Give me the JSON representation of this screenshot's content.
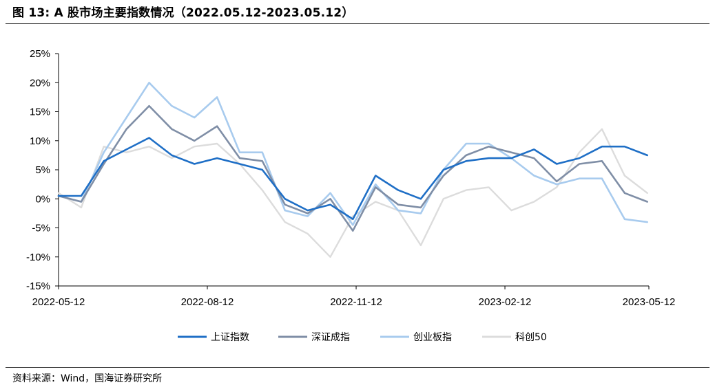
{
  "figure": {
    "title": "图 13:  A 股市场主要指数情况（2022.05.12-2023.05.12）",
    "source": "资料来源：Wind，国海证券研究所"
  },
  "chart_data": {
    "type": "line",
    "title": "",
    "xlabel": "",
    "ylabel": "",
    "ylim": [
      -15,
      25
    ],
    "y_ticks": [
      "25%",
      "20%",
      "15%",
      "10%",
      "5%",
      "0%",
      "-5%",
      "-10%",
      "-15%"
    ],
    "y_unit": "%",
    "x_ticks": [
      "2022-05-12",
      "2022-08-12",
      "2022-11-12",
      "2023-02-12",
      "2023-05-12"
    ],
    "grid": false,
    "legend_position": "bottom",
    "x_dates": [
      "2022-05-12",
      "2022-05-26",
      "2022-06-09",
      "2022-06-23",
      "2022-07-07",
      "2022-07-21",
      "2022-08-04",
      "2022-08-18",
      "2022-09-01",
      "2022-09-15",
      "2022-09-29",
      "2022-10-13",
      "2022-10-27",
      "2022-11-10",
      "2022-11-24",
      "2022-12-08",
      "2022-12-22",
      "2023-01-05",
      "2023-01-19",
      "2023-02-02",
      "2023-02-16",
      "2023-03-02",
      "2023-03-16",
      "2023-03-30",
      "2023-04-13",
      "2023-04-27",
      "2023-05-11"
    ],
    "series": [
      {
        "name": "上证指数",
        "color": "#1f6fc6",
        "width": 2.6,
        "values": [
          0.5,
          0.5,
          6.5,
          8.5,
          10.5,
          7.5,
          6.0,
          7.0,
          6.0,
          5.0,
          0.0,
          -2.0,
          -1.0,
          -3.5,
          4.0,
          1.5,
          0.0,
          5.0,
          6.5,
          7.0,
          7.0,
          8.5,
          6.0,
          7.0,
          9.0,
          9.0,
          7.5
        ]
      },
      {
        "name": "深证成指",
        "color": "#7f8ea6",
        "width": 2.6,
        "values": [
          0.5,
          -0.5,
          6.0,
          12.0,
          16.0,
          12.0,
          10.0,
          12.5,
          7.0,
          6.5,
          -1.0,
          -2.5,
          0.0,
          -5.5,
          2.0,
          -1.0,
          -1.5,
          4.0,
          7.5,
          9.0,
          8.0,
          7.0,
          3.0,
          6.0,
          6.5,
          1.0,
          -0.5
        ]
      },
      {
        "name": "创业板指",
        "color": "#a8cbee",
        "width": 2.6,
        "values": [
          0.5,
          -0.5,
          8.0,
          14.0,
          20.0,
          16.0,
          14.0,
          17.5,
          8.0,
          8.0,
          -2.0,
          -3.0,
          1.0,
          -4.5,
          2.5,
          -2.0,
          -2.5,
          5.0,
          9.5,
          9.5,
          7.0,
          4.0,
          2.5,
          3.5,
          3.5,
          -3.5,
          -4.0
        ]
      },
      {
        "name": "科创50",
        "color": "#dcdcdc",
        "width": 2.4,
        "values": [
          1.0,
          -1.5,
          9.0,
          8.0,
          9.0,
          7.0,
          9.0,
          9.5,
          6.0,
          1.5,
          -4.0,
          -6.0,
          -10.0,
          -3.0,
          -0.5,
          -2.0,
          -8.0,
          0.0,
          1.5,
          2.0,
          -2.0,
          -0.5,
          2.0,
          8.0,
          12.0,
          4.0,
          1.0
        ]
      }
    ]
  }
}
